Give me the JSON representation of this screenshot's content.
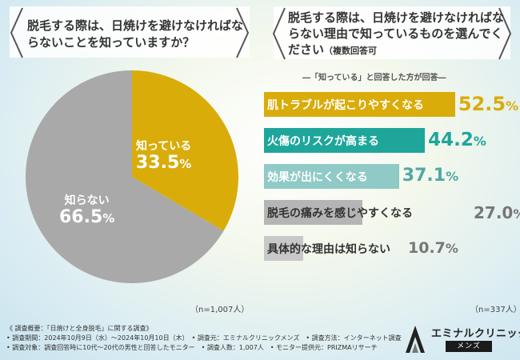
{
  "left_question": "脱毛する際は、日焼けを避けなければならないことを知っていますか？",
  "right_question_main": "脱毛する際は、日焼けを避けなければならない理由で知っているものを選んでください",
  "right_question_note": "（複数回答可",
  "right_subhead": "―「知っている」と回答した方が回答―",
  "left_n": "（n=1,007人）",
  "right_n": "（n=337人）",
  "footer": {
    "line1": "《 調査概要：「日焼けと全身脱毛」に関する調査》",
    "line2": "• 調査期間：2024年10月9日（水）〜2024年10月10日（木）　• 調査元：エミナルクリニックメンズ　• 調査方法：インターネット調査",
    "line3": "• 調査対象：調査回答時に10代〜20代の男性と回答したモニター　• 調査人数：1,007人　• モニター提供元：PRIZMAリサーチ"
  },
  "logo": {
    "name": "エミナルクリニック",
    "sub": "メンズ"
  },
  "colors": {
    "pie_yes": "#d9ac0a",
    "pie_no": "#a9a9a9",
    "bar1": "#d9ac0a",
    "bar2": "#1ea69b",
    "bar3": "#8fcac6",
    "bar4": "#b5b5b5",
    "bar5": "#c8c8c8"
  },
  "chart_data": [
    {
      "type": "pie",
      "slices": [
        {
          "label": "知っている",
          "value": 33.5,
          "display": "33.5",
          "color": "#d9ac0a"
        },
        {
          "label": "知らない",
          "value": 66.5,
          "display": "66.5",
          "color": "#a9a9a9"
        }
      ],
      "unit": "%"
    },
    {
      "type": "bar",
      "orientation": "horizontal",
      "categories": [
        "肌トラブルが起こりやすくなる",
        "火傷のリスクが高まる",
        "効果が出にくくなる",
        "脱毛の痛みを感じやすくなる",
        "具体的な理由は知らない"
      ],
      "values": [
        52.5,
        44.2,
        37.1,
        27.0,
        10.7
      ],
      "display": [
        "52.5",
        "44.2",
        "37.1",
        "27.0",
        "10.7"
      ],
      "unit": "%"
    }
  ]
}
